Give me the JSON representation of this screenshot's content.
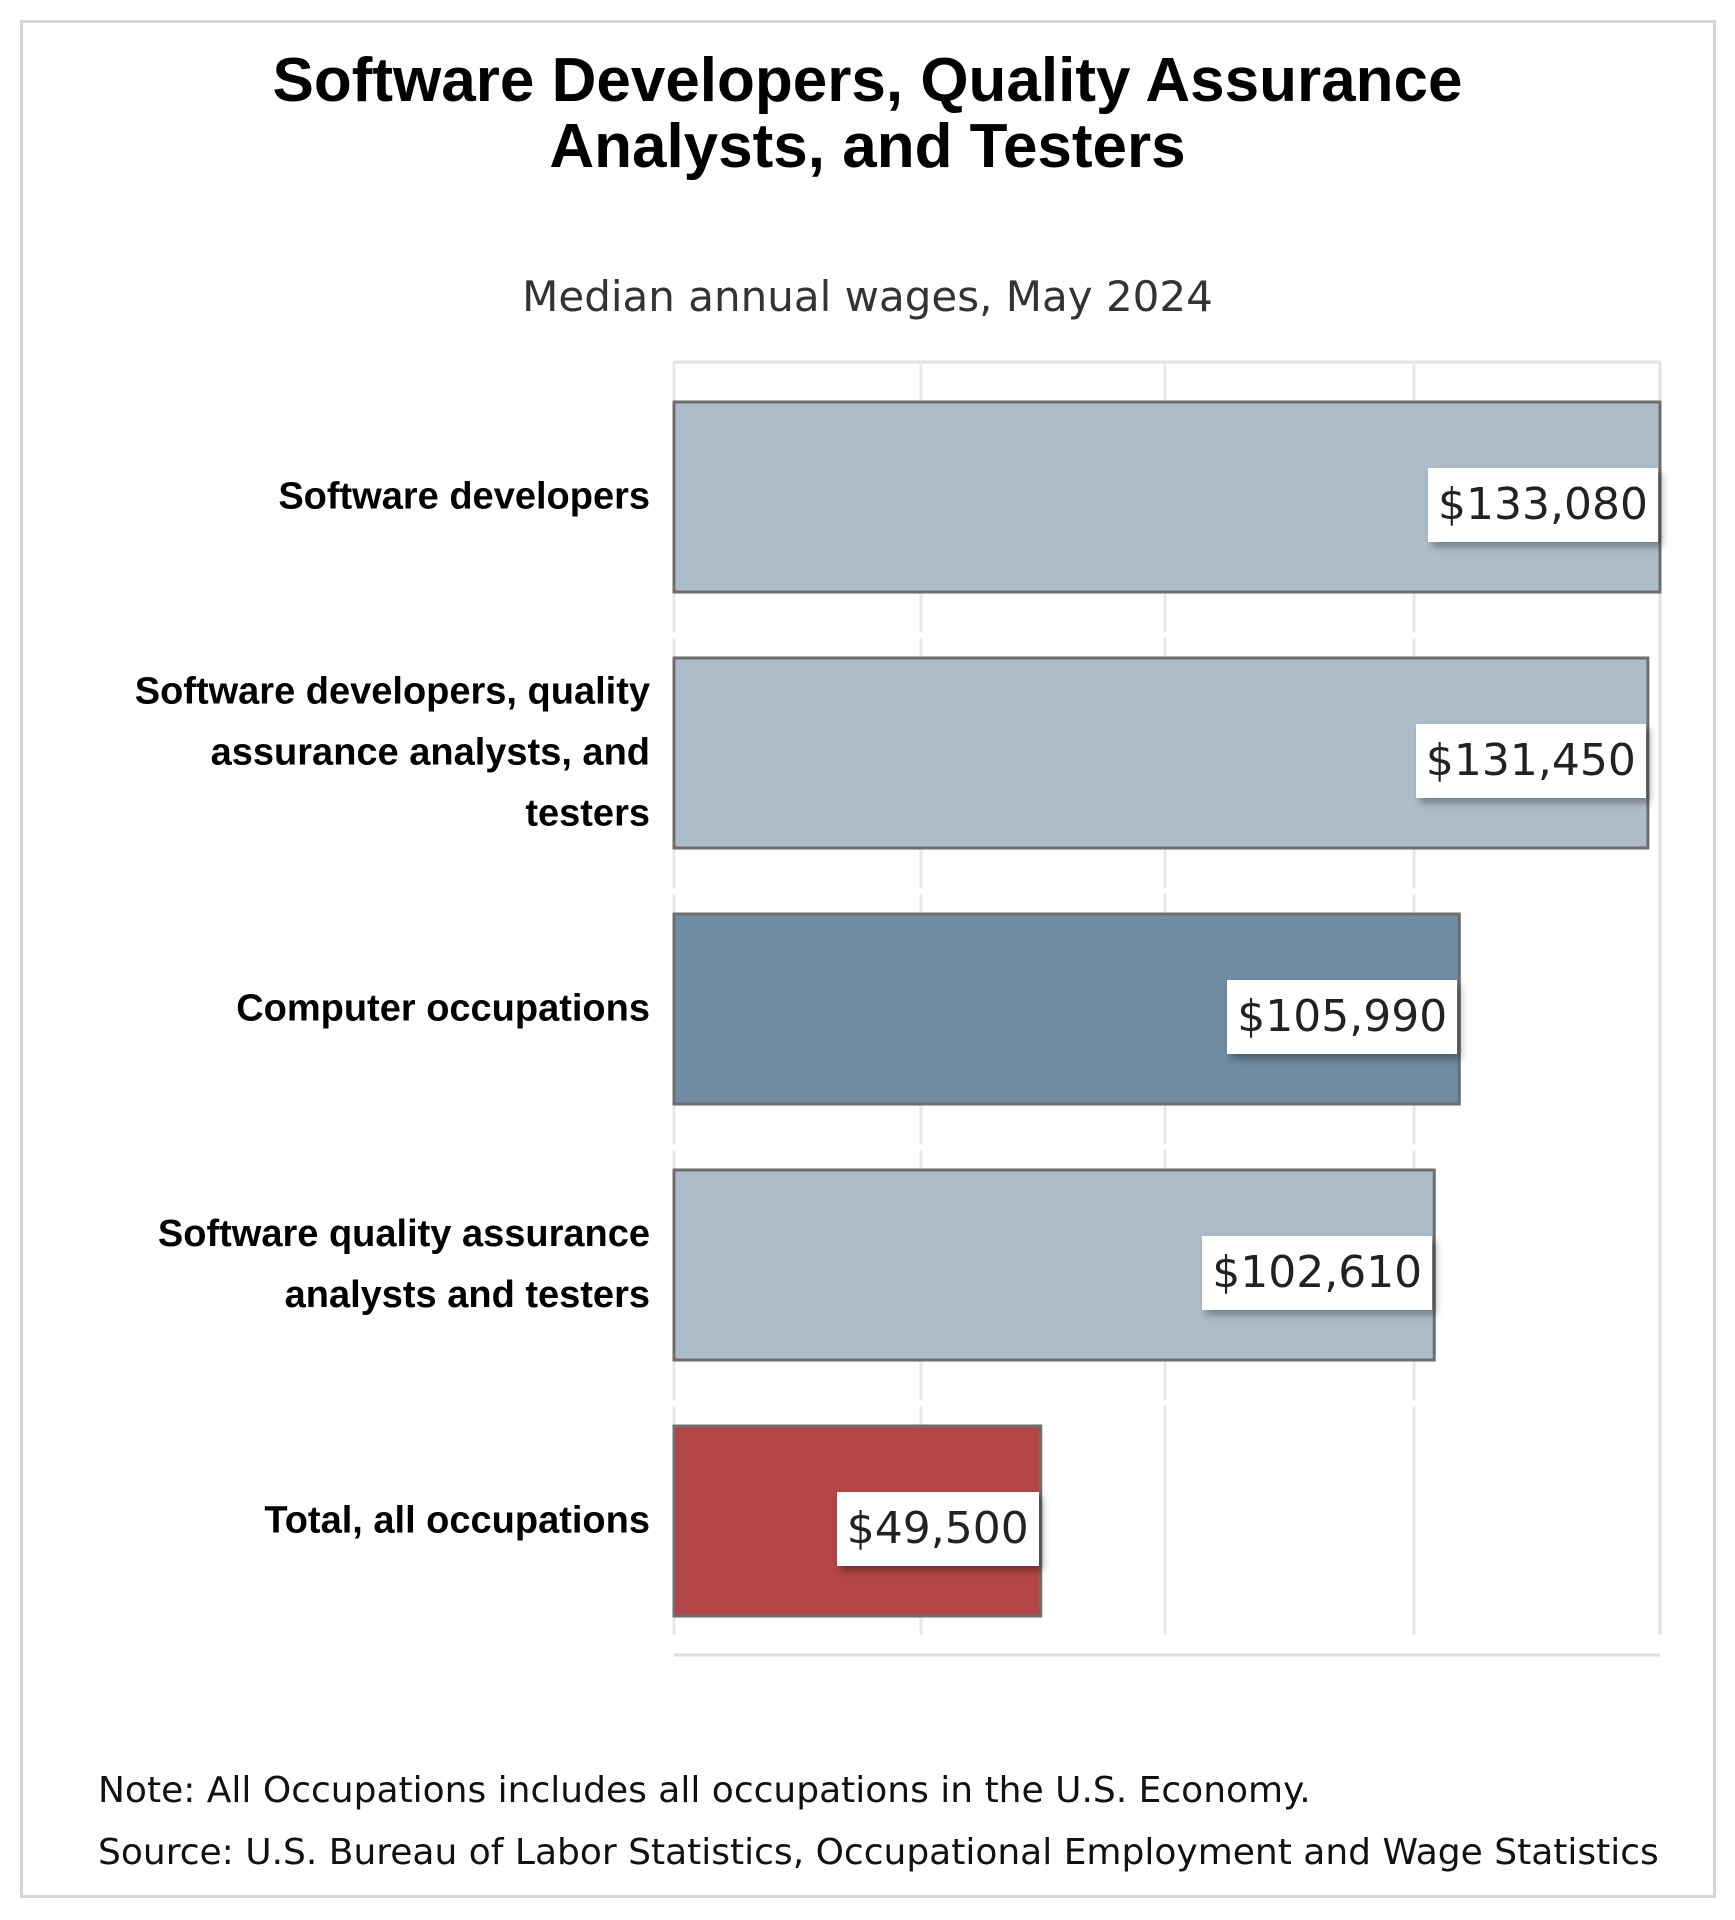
{
  "chart_data": {
    "type": "bar",
    "orientation": "horizontal",
    "title": "Software Developers, Quality Assurance Analysts, and Testers",
    "title_lines": [
      "Software Developers, Quality Assurance",
      "Analysts, and Testers"
    ],
    "subtitle": "Median annual wages, May 2024",
    "categories": [
      "Software developers",
      "Software developers, quality assurance analysts, and testers",
      "Computer occupations",
      "Software quality assurance analysts and testers",
      "Total, all occupations"
    ],
    "category_lines": [
      [
        "Software developers"
      ],
      [
        "Software developers, quality",
        "assurance analysts, and",
        "testers"
      ],
      [
        "Computer occupations"
      ],
      [
        "Software quality assurance",
        "analysts and testers"
      ],
      [
        "Total, all occupations"
      ]
    ],
    "values": [
      133080,
      131450,
      105990,
      102610,
      49500
    ],
    "data_labels": [
      "$133,080",
      "$131,450",
      "$105,990",
      "$102,610",
      "$49,500"
    ],
    "colors": [
      "#adbcc9",
      "#adbcc9",
      "#6f8ca3",
      "#adbcc9",
      "#b34546"
    ],
    "xlim": [
      0,
      133080
    ],
    "xlabel": "",
    "ylabel": "",
    "grid": true,
    "legend": "none"
  },
  "notes": {
    "note": "Note: All Occupations includes all occupations in the U.S. Economy.",
    "source": "Source: U.S. Bureau of Labor Statistics, Occupational Employment and Wage Statistics"
  }
}
